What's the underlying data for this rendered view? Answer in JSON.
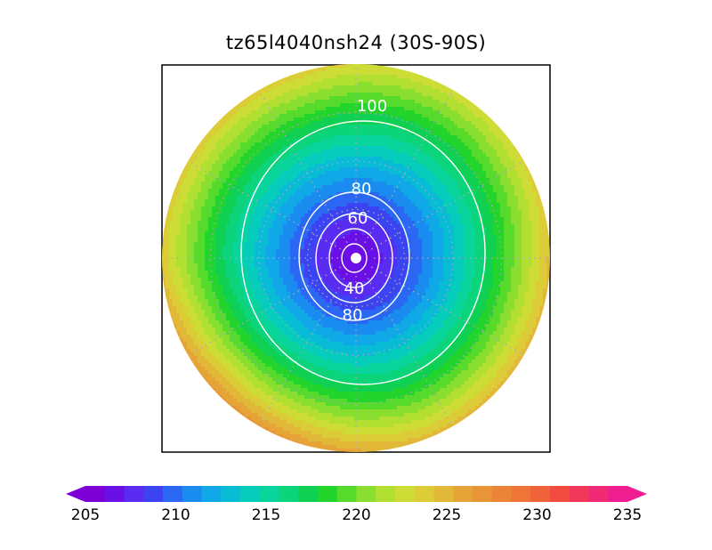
{
  "chart_data": {
    "type": "heatmap",
    "title": "tz65l4040nsh24 (30S-90S)",
    "projection": "polar stereographic (south pole)",
    "shaded_field": {
      "colorbar": {
        "min": 205,
        "max": 235,
        "step": 1.25,
        "extend": "both",
        "tick_labels": [
          "205",
          "210",
          "215",
          "220",
          "225",
          "230",
          "235"
        ],
        "colors": [
          "#7c00d6",
          "#6a10e6",
          "#5a2cf2",
          "#3c44f2",
          "#2a68f4",
          "#1a8cf0",
          "#10a8e6",
          "#08bcd6",
          "#06ccbc",
          "#08d49c",
          "#0cd47a",
          "#10d054",
          "#22d42c",
          "#56da2c",
          "#8ade30",
          "#b2e032",
          "#cedd36",
          "#dccc38",
          "#e2b838",
          "#e6a438",
          "#ea9438",
          "#ec8438",
          "#ee7438",
          "#f06238",
          "#f24c40",
          "#f2385a",
          "#f02a74",
          "#ee1e90"
        ]
      },
      "pole_value": 206,
      "rim_value": 227
    },
    "contour_lines": [
      {
        "value": 20,
        "label": ""
      },
      {
        "value": 40,
        "label": "40"
      },
      {
        "value": 60,
        "label": "60"
      },
      {
        "value": 80,
        "label": "80"
      },
      {
        "value": 100,
        "label": "100"
      }
    ],
    "grid": true
  }
}
